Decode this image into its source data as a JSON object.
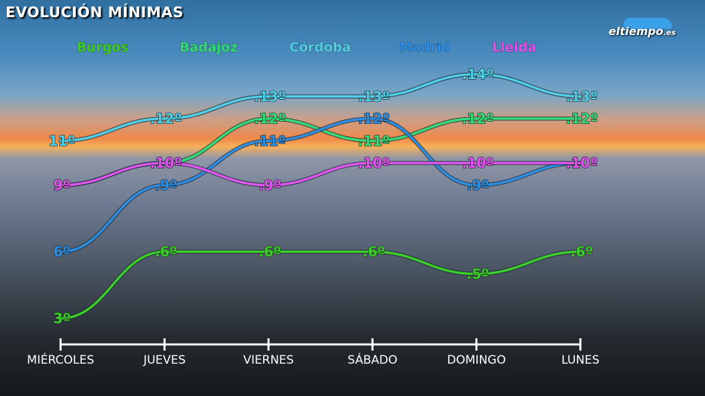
{
  "header": {
    "title": "EVOLUCIÓN MÍNIMAS"
  },
  "logo": {
    "brand": "eltiempo",
    "tld": ".es"
  },
  "chart_data": {
    "type": "line",
    "title": "EVOLUCIÓN MÍNIMAS",
    "categories": [
      "MIÉRCOLES",
      "JUEVES",
      "VIERNES",
      "SÁBADO",
      "DOMINGO",
      "LUNES"
    ],
    "unit": "º",
    "ylim": [
      3,
      14
    ],
    "legend_position": "top",
    "series": [
      {
        "name": "Burgos",
        "color": "#3ccf2a",
        "values": [
          3,
          6,
          6,
          6,
          5,
          6
        ]
      },
      {
        "name": "Badajoz",
        "color": "#33dd77",
        "values": [
          9,
          10,
          12,
          11,
          12,
          12
        ]
      },
      {
        "name": "Córdoba",
        "color": "#4fd0e8",
        "values": [
          11,
          12,
          13,
          13,
          14,
          13
        ]
      },
      {
        "name": "Madrid",
        "color": "#2c8fe6",
        "values": [
          6,
          9,
          11,
          12,
          9,
          10
        ]
      },
      {
        "name": "Lleida",
        "color": "#e055f0",
        "values": [
          9,
          10,
          9,
          10,
          10,
          10
        ]
      }
    ]
  }
}
